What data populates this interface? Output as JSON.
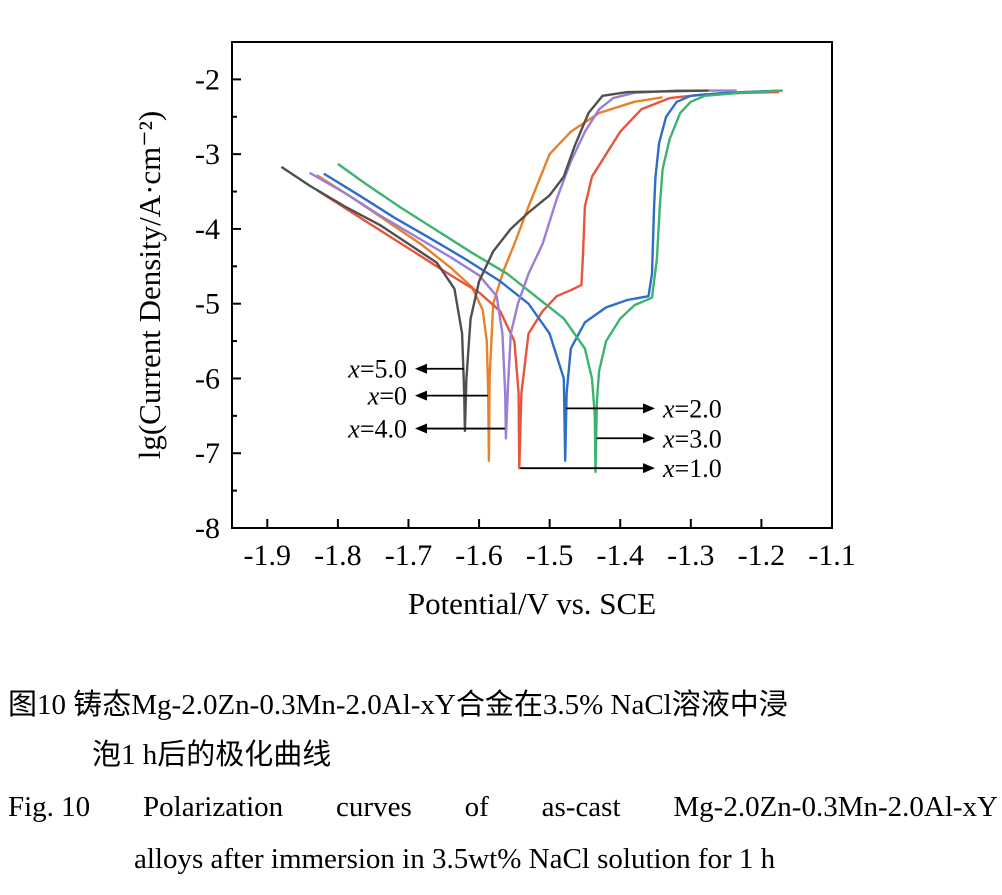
{
  "chart_data": {
    "type": "line",
    "title": "",
    "xlabel": "Potential/V vs. SCE",
    "ylabel": "lg(Current Density/A·cm⁻²)",
    "xlim": [
      -1.95,
      -1.1
    ],
    "ylim": [
      -8,
      -1.5
    ],
    "xticks": [
      "-1.9",
      "-1.8",
      "-1.7",
      "-1.6",
      "-1.5",
      "-1.4",
      "-1.3",
      "-1.2",
      "-1.1"
    ],
    "yticks": [
      "-2",
      "-3",
      "-4",
      "-5",
      "-6",
      "-7",
      "-8"
    ],
    "series": [
      {
        "name": "x=0",
        "color": "#e8812a",
        "points": [
          [
            -1.83,
            -3.28
          ],
          [
            -1.78,
            -3.58
          ],
          [
            -1.73,
            -3.9
          ],
          [
            -1.68,
            -4.22
          ],
          [
            -1.64,
            -4.52
          ],
          [
            -1.61,
            -4.78
          ],
          [
            -1.595,
            -5.08
          ],
          [
            -1.589,
            -5.5
          ],
          [
            -1.587,
            -6.2
          ],
          [
            -1.586,
            -7.1
          ],
          [
            -1.585,
            -6.0
          ],
          [
            -1.58,
            -5.0
          ],
          [
            -1.565,
            -4.55
          ],
          [
            -1.55,
            -4.2
          ],
          [
            -1.53,
            -3.7
          ],
          [
            -1.5,
            -3.0
          ],
          [
            -1.47,
            -2.7
          ],
          [
            -1.43,
            -2.45
          ],
          [
            -1.38,
            -2.3
          ],
          [
            -1.34,
            -2.24
          ]
        ]
      },
      {
        "name": "x=1.0",
        "color": "#e8553e",
        "points": [
          [
            -1.83,
            -3.48
          ],
          [
            -1.78,
            -3.78
          ],
          [
            -1.73,
            -4.08
          ],
          [
            -1.68,
            -4.38
          ],
          [
            -1.64,
            -4.62
          ],
          [
            -1.6,
            -4.85
          ],
          [
            -1.57,
            -5.1
          ],
          [
            -1.55,
            -5.5
          ],
          [
            -1.544,
            -6.2
          ],
          [
            -1.543,
            -7.2
          ],
          [
            -1.54,
            -6.2
          ],
          [
            -1.53,
            -5.4
          ],
          [
            -1.51,
            -5.1
          ],
          [
            -1.49,
            -4.9
          ],
          [
            -1.47,
            -4.82
          ],
          [
            -1.455,
            -4.75
          ],
          [
            -1.453,
            -4.4
          ],
          [
            -1.45,
            -3.7
          ],
          [
            -1.44,
            -3.3
          ],
          [
            -1.42,
            -3.0
          ],
          [
            -1.4,
            -2.7
          ],
          [
            -1.37,
            -2.4
          ],
          [
            -1.33,
            -2.25
          ],
          [
            -1.28,
            -2.2
          ],
          [
            -1.22,
            -2.18
          ],
          [
            -1.175,
            -2.17
          ]
        ]
      },
      {
        "name": "x=2.0",
        "color": "#2e6ec4",
        "points": [
          [
            -1.82,
            -3.26
          ],
          [
            -1.77,
            -3.55
          ],
          [
            -1.72,
            -3.85
          ],
          [
            -1.67,
            -4.12
          ],
          [
            -1.62,
            -4.4
          ],
          [
            -1.57,
            -4.7
          ],
          [
            -1.53,
            -5.0
          ],
          [
            -1.5,
            -5.4
          ],
          [
            -1.48,
            -6.0
          ],
          [
            -1.478,
            -7.1
          ],
          [
            -1.476,
            -6.2
          ],
          [
            -1.47,
            -5.6
          ],
          [
            -1.45,
            -5.25
          ],
          [
            -1.42,
            -5.05
          ],
          [
            -1.39,
            -4.95
          ],
          [
            -1.36,
            -4.9
          ],
          [
            -1.355,
            -4.6
          ],
          [
            -1.352,
            -3.7
          ],
          [
            -1.35,
            -3.3
          ],
          [
            -1.345,
            -2.85
          ],
          [
            -1.335,
            -2.5
          ],
          [
            -1.32,
            -2.3
          ],
          [
            -1.3,
            -2.22
          ],
          [
            -1.25,
            -2.18
          ],
          [
            -1.2,
            -2.16
          ],
          [
            -1.17,
            -2.15
          ]
        ]
      },
      {
        "name": "x=3.0",
        "color": "#3cb470",
        "points": [
          [
            -1.8,
            -3.13
          ],
          [
            -1.76,
            -3.4
          ],
          [
            -1.71,
            -3.72
          ],
          [
            -1.66,
            -4.02
          ],
          [
            -1.61,
            -4.32
          ],
          [
            -1.56,
            -4.6
          ],
          [
            -1.52,
            -4.9
          ],
          [
            -1.48,
            -5.2
          ],
          [
            -1.45,
            -5.6
          ],
          [
            -1.44,
            -6.0
          ],
          [
            -1.436,
            -6.5
          ],
          [
            -1.435,
            -7.25
          ],
          [
            -1.433,
            -6.3
          ],
          [
            -1.43,
            -5.9
          ],
          [
            -1.42,
            -5.5
          ],
          [
            -1.4,
            -5.2
          ],
          [
            -1.38,
            -5.02
          ],
          [
            -1.355,
            -4.92
          ],
          [
            -1.348,
            -4.4
          ],
          [
            -1.344,
            -3.7
          ],
          [
            -1.34,
            -3.2
          ],
          [
            -1.33,
            -2.8
          ],
          [
            -1.315,
            -2.45
          ],
          [
            -1.3,
            -2.3
          ],
          [
            -1.28,
            -2.22
          ],
          [
            -1.23,
            -2.18
          ],
          [
            -1.17,
            -2.15
          ]
        ]
      },
      {
        "name": "x=4.0",
        "color": "#9b7ed6",
        "points": [
          [
            -1.84,
            -3.25
          ],
          [
            -1.79,
            -3.52
          ],
          [
            -1.74,
            -3.82
          ],
          [
            -1.69,
            -4.1
          ],
          [
            -1.64,
            -4.38
          ],
          [
            -1.6,
            -4.62
          ],
          [
            -1.575,
            -4.9
          ],
          [
            -1.567,
            -5.4
          ],
          [
            -1.563,
            -6.2
          ],
          [
            -1.562,
            -6.8
          ],
          [
            -1.559,
            -6.1
          ],
          [
            -1.555,
            -5.4
          ],
          [
            -1.545,
            -5.0
          ],
          [
            -1.53,
            -4.6
          ],
          [
            -1.51,
            -4.2
          ],
          [
            -1.49,
            -3.6
          ],
          [
            -1.47,
            -3.1
          ],
          [
            -1.45,
            -2.7
          ],
          [
            -1.43,
            -2.4
          ],
          [
            -1.41,
            -2.25
          ],
          [
            -1.38,
            -2.18
          ],
          [
            -1.32,
            -2.15
          ],
          [
            -1.235,
            -2.15
          ]
        ]
      },
      {
        "name": "x=5.0",
        "color": "#505050",
        "points": [
          [
            -1.88,
            -3.17
          ],
          [
            -1.84,
            -3.42
          ],
          [
            -1.79,
            -3.7
          ],
          [
            -1.74,
            -3.95
          ],
          [
            -1.7,
            -4.2
          ],
          [
            -1.66,
            -4.45
          ],
          [
            -1.635,
            -4.8
          ],
          [
            -1.624,
            -5.4
          ],
          [
            -1.621,
            -6.2
          ],
          [
            -1.62,
            -6.7
          ],
          [
            -1.618,
            -6.0
          ],
          [
            -1.612,
            -5.2
          ],
          [
            -1.6,
            -4.7
          ],
          [
            -1.58,
            -4.3
          ],
          [
            -1.555,
            -4.0
          ],
          [
            -1.53,
            -3.78
          ],
          [
            -1.5,
            -3.55
          ],
          [
            -1.48,
            -3.3
          ],
          [
            -1.465,
            -2.9
          ],
          [
            -1.445,
            -2.45
          ],
          [
            -1.425,
            -2.22
          ],
          [
            -1.39,
            -2.17
          ],
          [
            -1.33,
            -2.16
          ],
          [
            -1.275,
            -2.15
          ]
        ]
      }
    ],
    "annotations": [
      {
        "label": "x=5.0",
        "var": "x",
        "value": "=5.0",
        "series_index": 5,
        "side": "left",
        "at_y": -5.87
      },
      {
        "label": "x=0",
        "var": "x",
        "value": "=0",
        "series_index": 0,
        "side": "left",
        "at_y": -6.23
      },
      {
        "label": "x=4.0",
        "var": "x",
        "value": "=4.0",
        "series_index": 4,
        "side": "left",
        "at_y": -6.67
      },
      {
        "label": "x=2.0",
        "var": "x",
        "value": "=2.0",
        "series_index": 2,
        "side": "right",
        "at_y": -6.4
      },
      {
        "label": "x=3.0",
        "var": "x",
        "value": "=3.0",
        "series_index": 3,
        "side": "right",
        "at_y": -6.8
      },
      {
        "label": "x=1.0",
        "var": "x",
        "value": "=1.0",
        "series_index": 1,
        "side": "right",
        "at_y": -7.2
      }
    ]
  },
  "caption": {
    "cn_line1": "图10  铸态Mg-2.0Zn-0.3Mn-2.0Al-xY合金在3.5% NaCl溶液中浸",
    "cn_line2": "泡1 h后的极化曲线",
    "en_line1_words": [
      "Fig. 10",
      "Polarization",
      "curves",
      "of",
      "as-cast",
      "Mg-2.0Zn-0.3Mn-2.0Al-xY"
    ],
    "en_line2": "alloys after immersion in 3.5wt% NaCl solution for 1 h"
  }
}
